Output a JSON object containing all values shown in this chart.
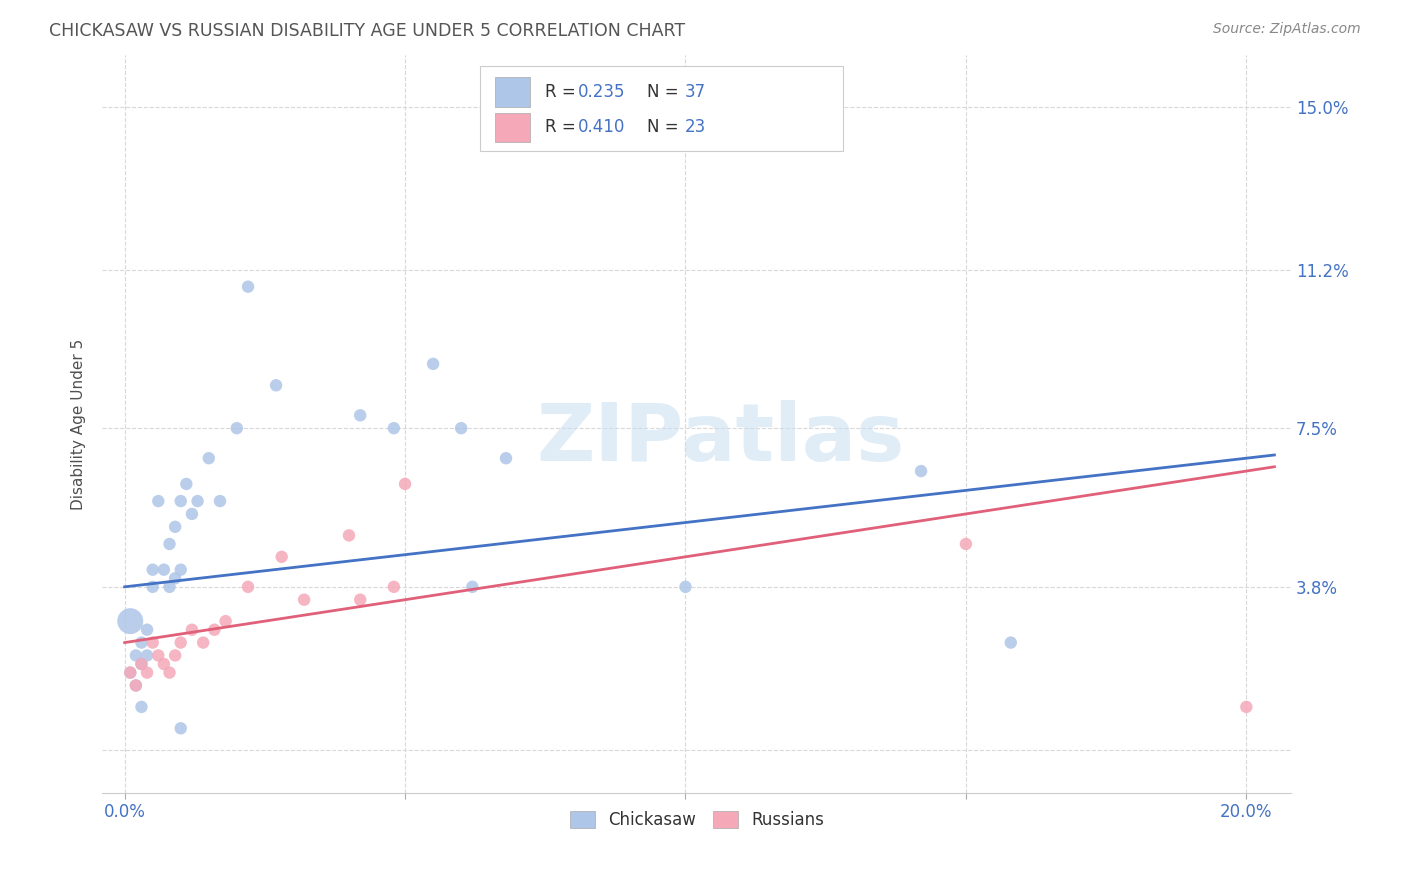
{
  "title": "CHICKASAW VS RUSSIAN DISABILITY AGE UNDER 5 CORRELATION CHART",
  "source": "Source: ZipAtlas.com",
  "ylabel": "Disability Age Under 5",
  "watermark": "ZIPatlas",
  "x_ticks": [
    0.0,
    0.05,
    0.1,
    0.15,
    0.2
  ],
  "x_tick_labels": [
    "0.0%",
    "",
    "",
    "",
    "20.0%"
  ],
  "y_tick_labels": [
    "",
    "3.8%",
    "7.5%",
    "11.2%",
    "15.0%"
  ],
  "y_ticks": [
    0.0,
    0.038,
    0.075,
    0.112,
    0.15
  ],
  "xlim": [
    -0.004,
    0.208
  ],
  "ylim": [
    -0.01,
    0.162
  ],
  "chickasaw_R": 0.235,
  "chickasaw_N": 37,
  "russian_R": 0.41,
  "russian_N": 23,
  "chickasaw_color": "#aec6e8",
  "russian_color": "#f4a8b8",
  "chickasaw_line_color": "#4472c4",
  "russian_line_color": "#e0607a",
  "tick_color": "#4472c4",
  "title_color": "#555555",
  "source_color": "#888888",
  "grid_color": "#d8d8d8",
  "background_color": "#ffffff",
  "chickasaw_x": [
    0.001,
    0.001,
    0.002,
    0.002,
    0.003,
    0.003,
    0.003,
    0.004,
    0.004,
    0.005,
    0.005,
    0.006,
    0.007,
    0.008,
    0.008,
    0.009,
    0.009,
    0.01,
    0.01,
    0.011,
    0.012,
    0.013,
    0.015,
    0.017,
    0.02,
    0.022,
    0.027,
    0.042,
    0.048,
    0.055,
    0.06,
    0.062,
    0.068,
    0.1,
    0.142,
    0.158,
    0.01
  ],
  "chickasaw_y": [
    0.03,
    0.018,
    0.022,
    0.015,
    0.02,
    0.025,
    0.01,
    0.028,
    0.022,
    0.038,
    0.042,
    0.058,
    0.042,
    0.038,
    0.048,
    0.052,
    0.04,
    0.042,
    0.058,
    0.062,
    0.055,
    0.058,
    0.068,
    0.058,
    0.075,
    0.108,
    0.085,
    0.078,
    0.075,
    0.09,
    0.075,
    0.038,
    0.068,
    0.038,
    0.065,
    0.025,
    0.005
  ],
  "chickasaw_sizes": [
    350,
    80,
    80,
    80,
    80,
    80,
    80,
    80,
    80,
    80,
    80,
    80,
    80,
    80,
    80,
    80,
    80,
    80,
    80,
    80,
    80,
    80,
    80,
    80,
    80,
    80,
    80,
    80,
    80,
    80,
    80,
    80,
    80,
    80,
    80,
    80,
    80
  ],
  "russian_x": [
    0.001,
    0.002,
    0.003,
    0.004,
    0.005,
    0.006,
    0.007,
    0.008,
    0.009,
    0.01,
    0.012,
    0.014,
    0.016,
    0.018,
    0.022,
    0.028,
    0.032,
    0.04,
    0.042,
    0.048,
    0.05,
    0.15,
    0.2
  ],
  "russian_y": [
    0.018,
    0.015,
    0.02,
    0.018,
    0.025,
    0.022,
    0.02,
    0.018,
    0.022,
    0.025,
    0.028,
    0.025,
    0.028,
    0.03,
    0.038,
    0.045,
    0.035,
    0.05,
    0.035,
    0.038,
    0.062,
    0.048,
    0.01
  ],
  "russian_sizes": [
    80,
    80,
    80,
    80,
    80,
    80,
    80,
    80,
    80,
    80,
    80,
    80,
    80,
    80,
    80,
    80,
    80,
    80,
    80,
    80,
    80,
    80,
    80
  ]
}
